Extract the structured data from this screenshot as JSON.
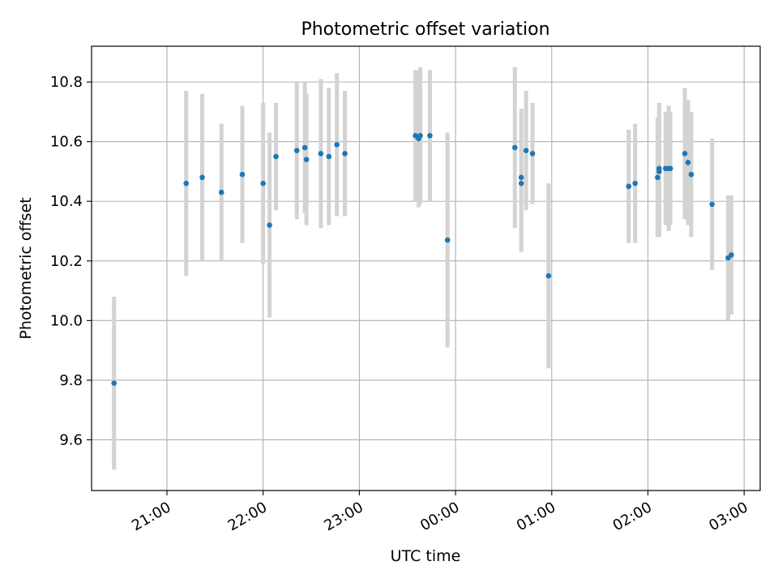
{
  "chart_data": {
    "type": "scatter",
    "title": "Photometric offset variation",
    "xlabel": "UTC time",
    "ylabel": "Photometric offset",
    "x_unit": "UTC clock time (hh:mm)",
    "xlim": [
      "20:13",
      "03:10"
    ],
    "ylim": [
      9.43,
      10.92
    ],
    "grid": true,
    "x_tick_labels": [
      "21:00",
      "22:00",
      "23:00",
      "00:00",
      "01:00",
      "02:00",
      "03:00"
    ],
    "x_tick_values": [
      "21:00",
      "22:00",
      "23:00",
      "00:00",
      "01:00",
      "02:00",
      "03:00"
    ],
    "y_tick_values": [
      9.6,
      9.8,
      10.0,
      10.2,
      10.4,
      10.6,
      10.8
    ],
    "y_tick_labels": [
      "9.6",
      "9.8",
      "10.0",
      "10.2",
      "10.4",
      "10.6",
      "10.8"
    ],
    "series": [
      {
        "marker_color": "#1f77b4",
        "errorbar_color": "#d3d3d3",
        "points": [
          {
            "x": "20:27",
            "y": 9.79,
            "err": 0.29
          },
          {
            "x": "21:12",
            "y": 10.46,
            "err": 0.31
          },
          {
            "x": "21:22",
            "y": 10.48,
            "err": 0.28
          },
          {
            "x": "21:34",
            "y": 10.43,
            "err": 0.23
          },
          {
            "x": "21:47",
            "y": 10.49,
            "err": 0.23
          },
          {
            "x": "22:00",
            "y": 10.46,
            "err": 0.27
          },
          {
            "x": "22:04",
            "y": 10.32,
            "err": 0.31
          },
          {
            "x": "22:08",
            "y": 10.55,
            "err": 0.18
          },
          {
            "x": "22:21",
            "y": 10.57,
            "err": 0.23
          },
          {
            "x": "22:26",
            "y": 10.58,
            "err": 0.22
          },
          {
            "x": "22:27",
            "y": 10.54,
            "err": 0.22
          },
          {
            "x": "22:36",
            "y": 10.56,
            "err": 0.25
          },
          {
            "x": "22:41",
            "y": 10.55,
            "err": 0.23
          },
          {
            "x": "22:46",
            "y": 10.59,
            "err": 0.24
          },
          {
            "x": "22:51",
            "y": 10.56,
            "err": 0.21
          },
          {
            "x": "23:35",
            "y": 10.62,
            "err": 0.22
          },
          {
            "x": "23:37",
            "y": 10.61,
            "err": 0.23
          },
          {
            "x": "23:38",
            "y": 10.62,
            "err": 0.23
          },
          {
            "x": "23:44",
            "y": 10.62,
            "err": 0.22
          },
          {
            "x": "23:55",
            "y": 10.27,
            "err": 0.36
          },
          {
            "x": "00:37",
            "y": 10.58,
            "err": 0.27
          },
          {
            "x": "00:41",
            "y": 10.46,
            "err": 0.23
          },
          {
            "x": "00:41",
            "y": 10.48,
            "err": 0.23
          },
          {
            "x": "00:44",
            "y": 10.57,
            "err": 0.2
          },
          {
            "x": "00:48",
            "y": 10.56,
            "err": 0.17
          },
          {
            "x": "00:58",
            "y": 10.15,
            "err": 0.31
          },
          {
            "x": "01:48",
            "y": 10.45,
            "err": 0.19
          },
          {
            "x": "01:52",
            "y": 10.46,
            "err": 0.2
          },
          {
            "x": "02:06",
            "y": 10.48,
            "err": 0.2
          },
          {
            "x": "02:07",
            "y": 10.5,
            "err": 0.22
          },
          {
            "x": "02:07",
            "y": 10.51,
            "err": 0.22
          },
          {
            "x": "02:11",
            "y": 10.51,
            "err": 0.19
          },
          {
            "x": "02:13",
            "y": 10.51,
            "err": 0.21
          },
          {
            "x": "02:14",
            "y": 10.51,
            "err": 0.19
          },
          {
            "x": "02:23",
            "y": 10.56,
            "err": 0.22
          },
          {
            "x": "02:25",
            "y": 10.53,
            "err": 0.21
          },
          {
            "x": "02:27",
            "y": 10.49,
            "err": 0.21
          },
          {
            "x": "02:40",
            "y": 10.39,
            "err": 0.22
          },
          {
            "x": "02:50",
            "y": 10.21,
            "err": 0.21
          },
          {
            "x": "02:52",
            "y": 10.22,
            "err": 0.2
          }
        ]
      }
    ]
  }
}
